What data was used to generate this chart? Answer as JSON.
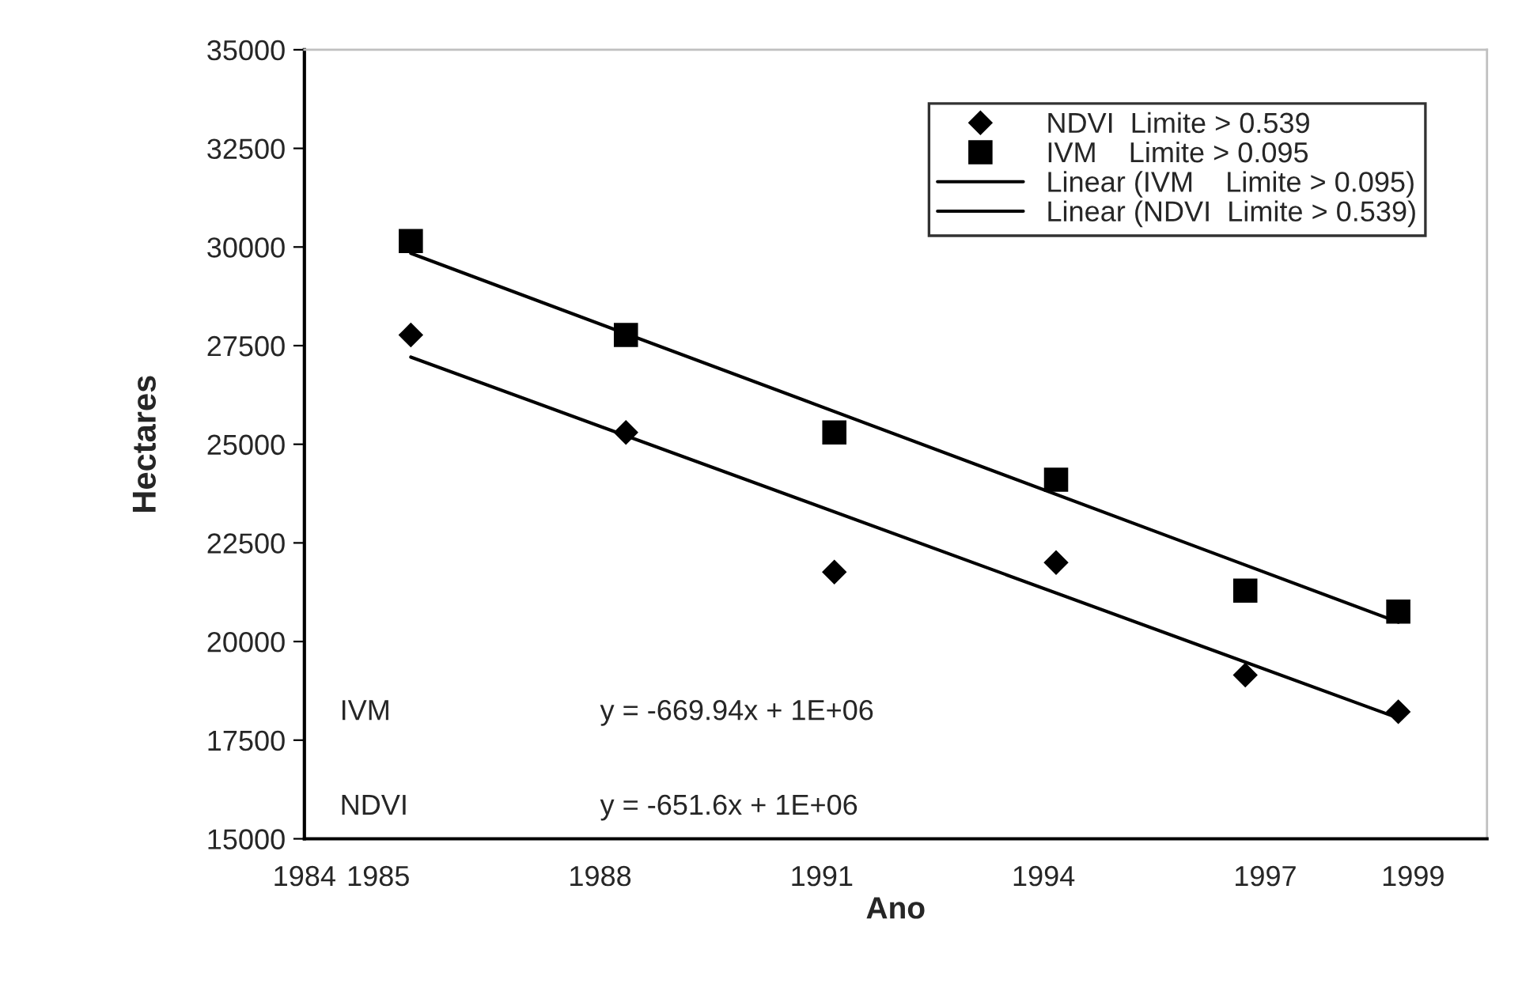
{
  "chart_data": {
    "type": "scatter",
    "xlabel": "Ano",
    "ylabel": "Hectares",
    "series": [
      {
        "name": "NDVI  Limite > 0.539",
        "marker": "diamond",
        "color": "#000000",
        "x": [
          1985.44,
          1988.35,
          1991.17,
          1994.17,
          1996.73,
          1998.8
        ],
        "values": [
          27770,
          25300,
          21760,
          22000,
          19150,
          18220
        ]
      },
      {
        "name": "IVM    Limite > 0.095",
        "marker": "square",
        "color": "#000000",
        "x": [
          1985.44,
          1988.35,
          1991.17,
          1994.17,
          1996.73,
          1998.8
        ],
        "values": [
          30150,
          27770,
          25300,
          24100,
          21290,
          20760
        ]
      },
      {
        "name": "Linear (IVM    Limite > 0.095)",
        "type": "line",
        "marker": "none",
        "color": "#000000",
        "x": [
          1985.44,
          1998.8
        ],
        "values": [
          29840,
          20490
        ]
      },
      {
        "name": "Linear (NDVI  Limite > 0.539)",
        "type": "line",
        "marker": "none",
        "color": "#000000",
        "x": [
          1985.44,
          1998.8
        ],
        "values": [
          27210,
          18060
        ]
      }
    ],
    "xlim": [
      1984,
      2000
    ],
    "xticks": [
      1984,
      1985,
      1988,
      1991,
      1994,
      1997,
      1999
    ],
    "ylim": [
      15000,
      35000
    ],
    "yticks": [
      15000,
      17500,
      20000,
      22500,
      25000,
      27500,
      30000,
      32500,
      35000
    ],
    "grid": false,
    "legend": "top right",
    "annotations": [
      "IVM",
      "y = -669.94x + 1E+06",
      "NDVI",
      "y = -651.6x + 1E+06"
    ]
  }
}
